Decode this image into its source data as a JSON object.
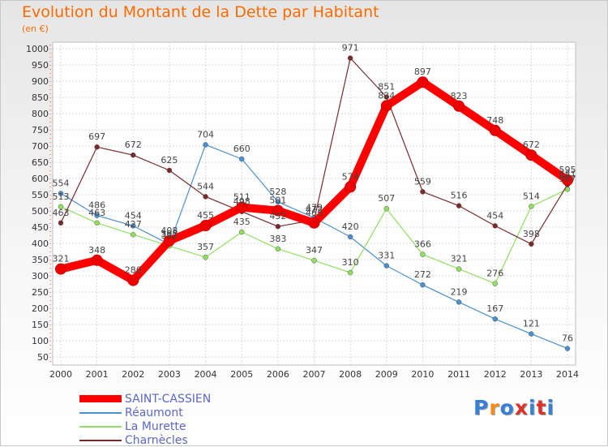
{
  "title": "Evolution du Montant de la Dette par Habitant",
  "unit": "(en €)",
  "brand": {
    "text": "Proxiti",
    "colors": [
      "#3a7fd5",
      "#ff8a1a",
      "#3a7fd5",
      "#e0302a",
      "#3a7fd5",
      "#e0302a",
      "#3a7fd5"
    ]
  },
  "chart_data": {
    "type": "line",
    "x": [
      "2000",
      "2001",
      "2002",
      "2003",
      "2004",
      "2005",
      "2006",
      "2007",
      "2008",
      "2009",
      "2010",
      "2011",
      "2012",
      "2013",
      "2014"
    ],
    "ylim": [
      50,
      1000
    ],
    "yticks": [
      "50",
      "100",
      "150",
      "200",
      "250",
      "300",
      "350",
      "400",
      "450",
      "500",
      "550",
      "600",
      "650",
      "700",
      "750",
      "800",
      "850",
      "900",
      "950",
      "1000"
    ],
    "grid": true,
    "legend_position": "bottom-left",
    "series": [
      {
        "name": "SAINT-CASSIEN",
        "color": "#ff0000",
        "values": [
          321,
          348,
          286,
          408,
          455,
          511,
          501,
          463,
          574,
          824,
          897,
          823,
          748,
          672,
          595
        ],
        "labels": [
          "321",
          "348",
          "286",
          "408",
          "455",
          "511",
          "501",
          "463",
          "574",
          "824",
          "897",
          "823",
          "748",
          "672",
          "595"
        ]
      },
      {
        "name": "Réaumont",
        "color": "#4a90d0",
        "values": [
          554,
          486,
          454,
          397,
          704,
          660,
          528,
          479,
          420,
          331,
          272,
          219,
          167,
          121,
          76
        ],
        "labels": [
          "554",
          "486",
          "454",
          "397",
          "704",
          "660",
          "528",
          "479",
          "420",
          "331",
          "272",
          "219",
          "167",
          "121",
          "76"
        ]
      },
      {
        "name": "La Murette",
        "color": "#90e060",
        "values": [
          513,
          463,
          427,
          392,
          357,
          435,
          383,
          347,
          310,
          507,
          366,
          321,
          276,
          514,
          567
        ],
        "labels": [
          "513",
          "463",
          "427",
          "392",
          "357",
          "435",
          "383",
          "347",
          "310",
          "507",
          "366",
          "321",
          "276",
          "514",
          "567"
        ]
      },
      {
        "name": "Charnècles",
        "color": "#7a2a2a",
        "values": [
          463,
          697,
          672,
          625,
          544,
          498,
          452,
          472,
          971,
          851,
          559,
          516,
          454,
          398,
          581
        ],
        "labels": [
          "463",
          "697",
          "672",
          "625",
          "544",
          "498",
          "452",
          "472",
          "971",
          "851",
          "559",
          "516",
          "454",
          "398",
          "581"
        ]
      }
    ]
  }
}
